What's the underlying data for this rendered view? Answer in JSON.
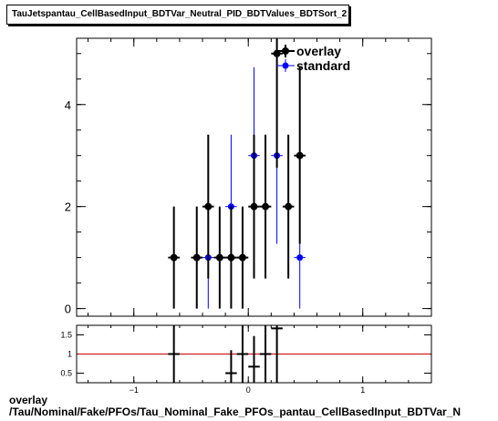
{
  "title": "TauJetspantau_CellBasedInput_BDTVar_Neutral_PID_BDTValues_BDTSort_2",
  "caption_line1": "overlay",
  "caption_line2": "/Tau/Nominal/Fake/PFOs/Tau_Nominal_Fake_PFOs_pantau_CellBasedInput_BDTVar_N",
  "colors": {
    "overlay": "#000000",
    "standard": "#0000ff",
    "ratio_line": "#cc0000"
  },
  "chart_data": [
    {
      "type": "scatter",
      "title": "",
      "xlabel": "",
      "ylabel": "",
      "xlim": [
        -1.5,
        1.6
      ],
      "ylim": [
        -0.15,
        5.3
      ],
      "x_ticks": [
        -1,
        0,
        1
      ],
      "y_ticks": [
        0,
        2,
        4
      ],
      "x_tick_labels": [
        "",
        "",
        ""
      ],
      "y_tick_labels": [
        "0",
        "2",
        "4"
      ],
      "legend": {
        "placement": "top-right",
        "entries": [
          "overlay",
          "standard"
        ]
      },
      "bin_half_width": 0.05,
      "series": [
        {
          "name": "overlay",
          "color": "#000000",
          "points": [
            {
              "x": -0.65,
              "y": 1,
              "err": 1.0
            },
            {
              "x": -0.45,
              "y": 1,
              "err": 1.0
            },
            {
              "x": -0.35,
              "y": 2,
              "err": 1.41
            },
            {
              "x": -0.25,
              "y": 1,
              "err": 1.0
            },
            {
              "x": -0.15,
              "y": 1,
              "err": 1.0
            },
            {
              "x": -0.05,
              "y": 1,
              "err": 1.0
            },
            {
              "x": 0.05,
              "y": 2,
              "err": 1.41
            },
            {
              "x": 0.15,
              "y": 2,
              "err": 1.41
            },
            {
              "x": 0.25,
              "y": 5,
              "err": 2.24
            },
            {
              "x": 0.35,
              "y": 2,
              "err": 1.41
            },
            {
              "x": 0.45,
              "y": 3,
              "err": 1.73
            }
          ]
        },
        {
          "name": "standard",
          "color": "#0000ff",
          "points": [
            {
              "x": -0.35,
              "y": 1,
              "err": 1.0
            },
            {
              "x": -0.15,
              "y": 2,
              "err": 1.41
            },
            {
              "x": 0.05,
              "y": 3,
              "err": 1.73
            },
            {
              "x": 0.25,
              "y": 3,
              "err": 1.73
            },
            {
              "x": 0.45,
              "y": 1,
              "err": 1.0
            }
          ]
        }
      ]
    },
    {
      "type": "scatter",
      "title": "",
      "xlabel": "",
      "ylabel": "",
      "xlim": [
        -1.5,
        1.6
      ],
      "ylim": [
        0.25,
        1.75
      ],
      "x_ticks": [
        -1,
        0,
        1
      ],
      "y_ticks": [
        0.5,
        1,
        1.5
      ],
      "x_tick_labels": [
        "−1",
        "0",
        "1"
      ],
      "y_tick_labels": [
        "0.5",
        "1",
        "1.5"
      ],
      "reference_line": 1,
      "points": [
        {
          "x": -0.65,
          "y": 1.0,
          "err": 1.0
        },
        {
          "x": -0.15,
          "y": 0.5,
          "err": 0.6
        },
        {
          "x": -0.05,
          "y": 1.0,
          "err": 1.0
        },
        {
          "x": 0.05,
          "y": 0.67,
          "err": 0.8
        },
        {
          "x": 0.15,
          "y": 1.0,
          "err": 1.0
        },
        {
          "x": 0.25,
          "y": 1.67,
          "err": 1.5
        }
      ]
    }
  ]
}
